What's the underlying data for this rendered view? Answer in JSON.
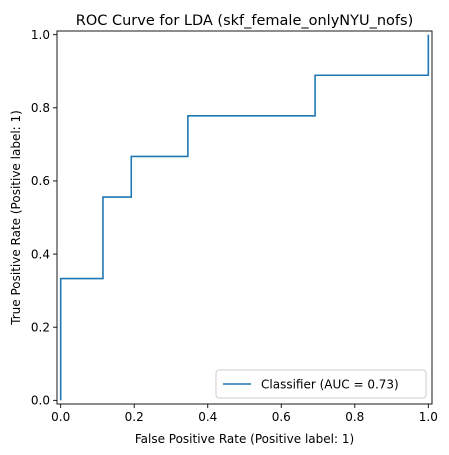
{
  "chart_data": {
    "type": "line",
    "title": "ROC Curve for LDA (skf_female_onlyNYU_nofs)",
    "xlabel": "False Positive Rate (Positive label: 1)",
    "ylabel": "True Positive Rate (Positive label: 1)",
    "xlim": [
      -0.01,
      1.01
    ],
    "ylim": [
      -0.01,
      1.01
    ],
    "xticks": [
      0.0,
      0.2,
      0.4,
      0.6,
      0.8,
      1.0
    ],
    "yticks": [
      0.0,
      0.2,
      0.4,
      0.6,
      0.8,
      1.0
    ],
    "xtick_labels": [
      "0.0",
      "0.2",
      "0.4",
      "0.6",
      "0.8",
      "1.0"
    ],
    "ytick_labels": [
      "0.0",
      "0.2",
      "0.4",
      "0.6",
      "0.8",
      "1.0"
    ],
    "grid": false,
    "legend": {
      "placement": "lower-right"
    },
    "series": [
      {
        "name": "Classifier (AUC = 0.73)",
        "color": "#1f77b4",
        "step": true,
        "x": [
          0.0,
          0.0,
          0.0,
          0.115,
          0.115,
          0.192,
          0.192,
          0.346,
          0.346,
          0.692,
          0.692,
          1.0,
          1.0
        ],
        "y": [
          0.0,
          0.0,
          0.333,
          0.333,
          0.556,
          0.556,
          0.667,
          0.667,
          0.778,
          0.778,
          0.889,
          0.889,
          1.0
        ]
      }
    ]
  }
}
